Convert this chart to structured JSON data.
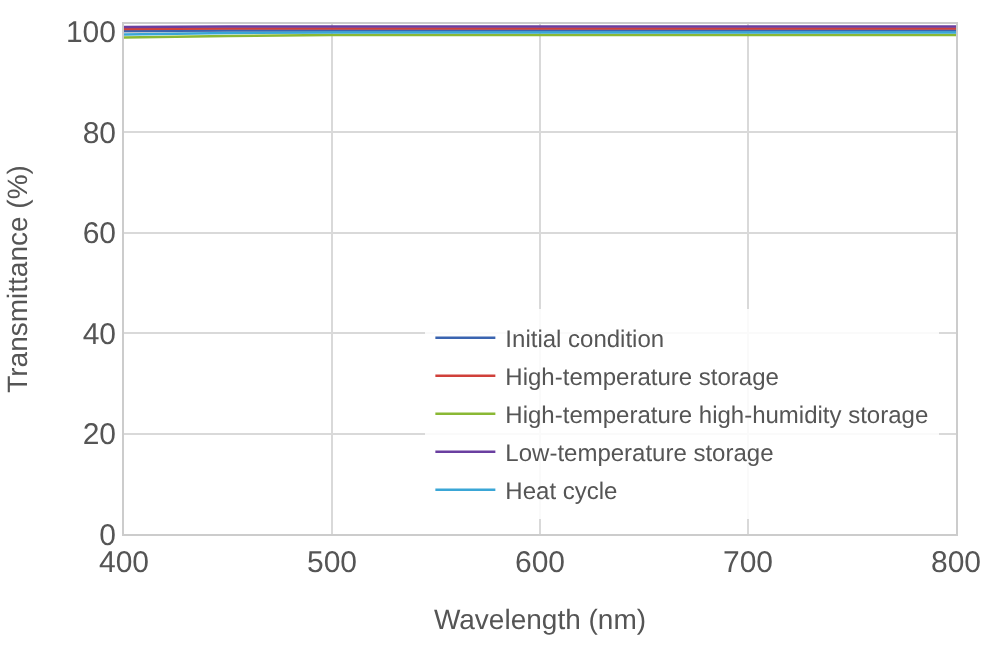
{
  "chart_data": {
    "type": "line",
    "xlabel": "Wavelength (nm)",
    "ylabel": "Transmittance (%)",
    "x": [
      400,
      450,
      500,
      550,
      600,
      650,
      700,
      750,
      800
    ],
    "series": [
      {
        "name": "Initial condition",
        "color": "#3a64b0",
        "values": [
          100.1,
          100.2,
          100.2,
          100.2,
          100.2,
          100.2,
          100.2,
          100.2,
          100.2
        ]
      },
      {
        "name": "High-temperature storage",
        "color": "#d0403a",
        "values": [
          100.5,
          100.6,
          100.6,
          100.6,
          100.6,
          100.6,
          100.6,
          100.6,
          100.6
        ]
      },
      {
        "name": "High-temperature high-humidity storage",
        "color": "#8ab834",
        "values": [
          98.8,
          99.1,
          99.3,
          99.3,
          99.3,
          99.3,
          99.3,
          99.3,
          99.3
        ]
      },
      {
        "name": "Low-temperature storage",
        "color": "#6a3fa0",
        "values": [
          100.9,
          101.0,
          101.0,
          101.0,
          101.0,
          101.0,
          101.0,
          101.0,
          101.0
        ]
      },
      {
        "name": "Heat cycle",
        "color": "#3aa6d6",
        "values": [
          99.4,
          99.7,
          99.8,
          99.8,
          99.8,
          99.8,
          99.8,
          99.8,
          99.8
        ]
      }
    ],
    "xlim": [
      400,
      800
    ],
    "xticks": [
      400,
      500,
      600,
      700,
      800
    ],
    "ylim": [
      0,
      101.5
    ],
    "yticks": [
      0,
      20,
      40,
      60,
      80,
      100
    ],
    "grid": true,
    "legend": "bottom right",
    "marker": "none",
    "line_style": "solid"
  }
}
